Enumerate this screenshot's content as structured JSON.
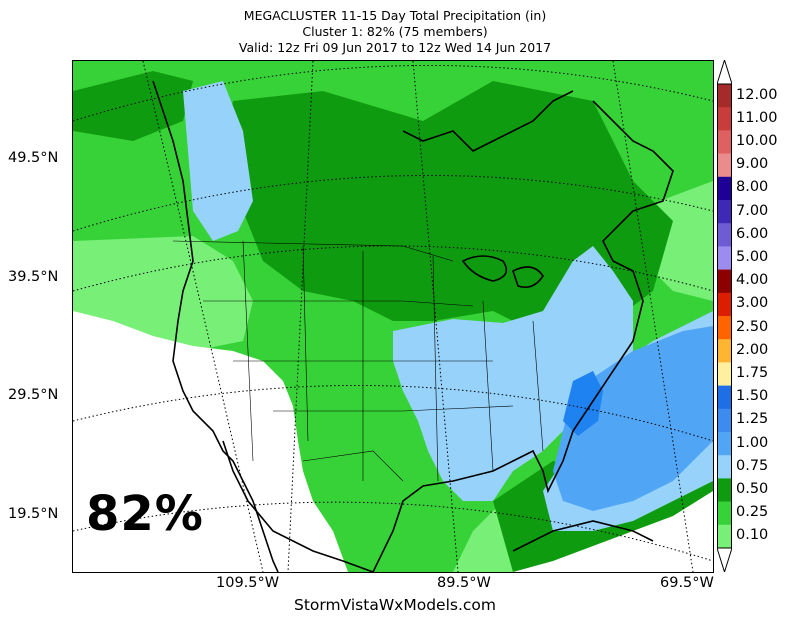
{
  "title": {
    "line1": "MEGACLUSTER 11-15 Day Total Precipitation (in)",
    "line2": "Cluster 1: 82% (75 members)",
    "line3": "Valid: 12z Fri 09 Jun 2017 to 12z Wed 14 Jun 2017"
  },
  "map": {
    "lat_labels": [
      "49.5°N",
      "39.5°N",
      "29.5°N",
      "19.5°N"
    ],
    "lon_labels": [
      "109.5°W",
      "89.5°W",
      "69.5°W"
    ],
    "cluster_percent": "82%",
    "credit": "StormVistaWxModels.com"
  },
  "legend": {
    "labels": [
      "12.00",
      "11.00",
      "10.00",
      "9.00",
      "8.00",
      "7.00",
      "6.00",
      "5.00",
      "4.00",
      "3.00",
      "2.50",
      "2.00",
      "1.75",
      "1.50",
      "1.25",
      "1.00",
      "0.75",
      "0.50",
      "0.25",
      "0.10"
    ],
    "colors": [
      "#a52a2a",
      "#c83c3c",
      "#de6060",
      "#ea8c8c",
      "#1e0096",
      "#3e28b6",
      "#6e5cd4",
      "#9c8cf0",
      "#8c0000",
      "#dc1e00",
      "#ff6400",
      "#ffb432",
      "#fff0a0",
      "#1e6ee6",
      "#3c8cf0",
      "#50a5f5",
      "#96d2fa",
      "#0f9b0f",
      "#37d237",
      "#78f078"
    ]
  },
  "colors": {
    "light_green": "#78f078",
    "mid_green": "#37d237",
    "dark_green": "#0f9b0f",
    "light_blue": "#96d2fa",
    "mid_blue": "#50a5f5",
    "deep_blue": "#1e82f0"
  }
}
